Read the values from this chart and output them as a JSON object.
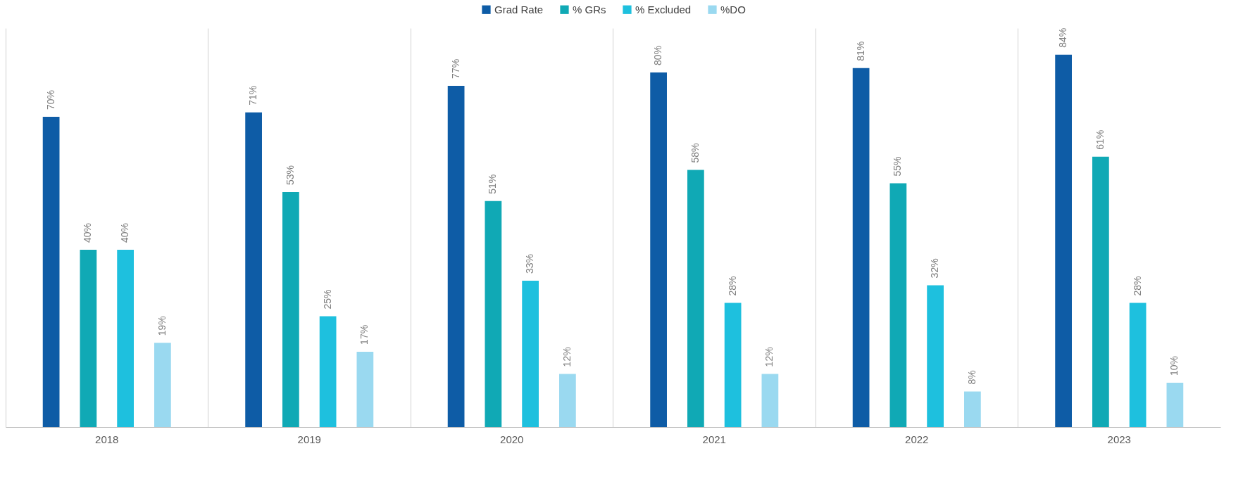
{
  "chart_data": {
    "type": "bar",
    "categories": [
      "2018",
      "2019",
      "2020",
      "2021",
      "2022",
      "2023"
    ],
    "series": [
      {
        "name": "Grad Rate",
        "color": "#0e5ca6",
        "values": [
          70,
          71,
          77,
          80,
          81,
          84
        ],
        "value_labels": [
          "70%",
          "71%",
          "77%",
          "80%",
          "81%",
          "84%"
        ]
      },
      {
        "name": "% GRs",
        "color": "#10a9b5",
        "values": [
          40,
          53,
          51,
          58,
          55,
          61
        ],
        "value_labels": [
          "40%",
          "53%",
          "51%",
          "58%",
          "55%",
          "61%"
        ]
      },
      {
        "name": "% Excluded",
        "color": "#1ec0de",
        "values": [
          40,
          25,
          33,
          28,
          32,
          28
        ],
        "value_labels": [
          "40%",
          "25%",
          "33%",
          "28%",
          "32%",
          "28%"
        ]
      },
      {
        "name": "%DO",
        "color": "#9ad9f0",
        "values": [
          19,
          17,
          12,
          12,
          8,
          10
        ],
        "value_labels": [
          "19%",
          "17%",
          "12%",
          "12%",
          "8%",
          "10%"
        ]
      }
    ],
    "grid": "x",
    "legend": "top"
  }
}
